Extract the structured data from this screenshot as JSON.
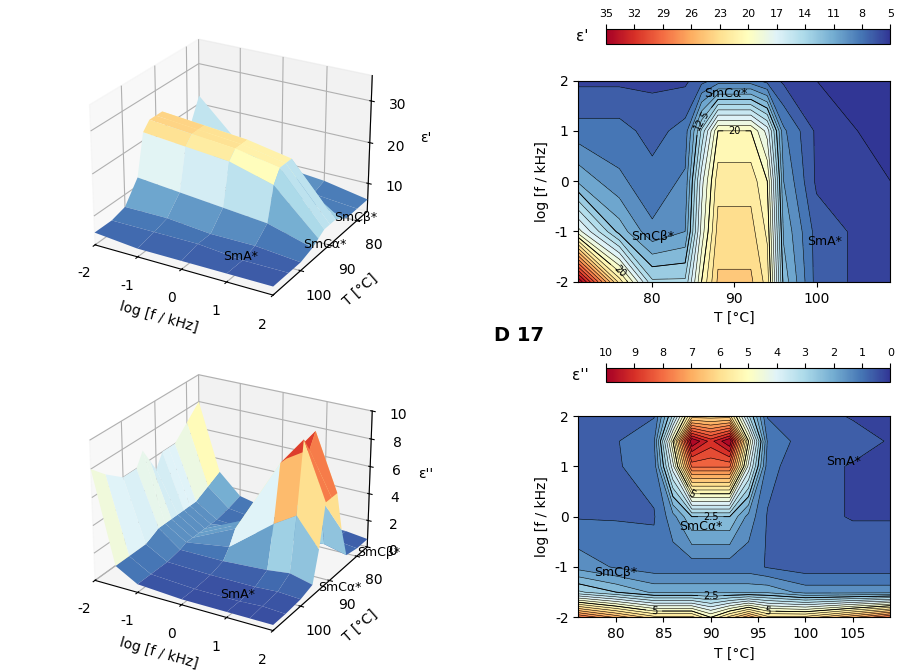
{
  "title": "D 17",
  "chart_data": [
    {
      "type": "surface3d",
      "xlabel": "T [°C]",
      "ylabel": "log [f / kHz]",
      "zlabel": "ε'",
      "x": [
        76,
        80,
        84,
        86,
        88,
        90,
        92,
        94,
        96,
        100,
        104,
        109
      ],
      "y": [
        -2,
        -1,
        0,
        1,
        2
      ],
      "cells": [
        [
          22,
          14,
          14,
          20,
          24,
          24,
          24,
          22,
          12,
          7,
          6,
          6
        ],
        [
          12,
          9,
          10,
          18,
          23,
          23,
          23,
          21,
          11,
          7,
          6,
          5
        ],
        [
          9,
          8,
          9,
          17,
          22,
          22,
          22,
          20,
          10,
          6,
          6,
          5
        ],
        [
          8,
          7,
          8,
          14,
          20,
          20,
          20,
          17,
          9,
          6,
          5,
          5
        ],
        [
          6,
          6,
          6,
          7,
          8,
          8,
          8,
          7,
          6,
          5,
          5,
          5
        ]
      ],
      "xlim": [
        109,
        76
      ],
      "xticks": [
        100,
        90,
        80
      ],
      "ylim": [
        -2,
        2
      ],
      "yticks": [
        -2,
        -1,
        0,
        1,
        2
      ],
      "zlim": [
        3,
        36
      ],
      "zticks": [
        10,
        20,
        30
      ],
      "annotations": [
        {
          "text": "SmA*",
          "x": 103,
          "y": 0.5
        },
        {
          "text": "SmCα*",
          "x": 93,
          "y": 1.6
        },
        {
          "text": "SmCβ*",
          "x": 82,
          "y": 1.6
        }
      ]
    },
    {
      "type": "surface3d",
      "xlabel": "T [°C]",
      "ylabel": "log [f / kHz]",
      "zlabel": "ε''",
      "x": [
        76,
        80,
        84,
        86,
        88,
        90,
        92,
        94,
        96,
        100,
        105,
        109
      ],
      "y": [
        -2,
        -1.5,
        -1,
        0,
        1,
        1.5,
        2
      ],
      "cells": [
        [
          8,
          7,
          6,
          6,
          6,
          5,
          6,
          7,
          6,
          6,
          7,
          8
        ],
        [
          3,
          2.5,
          2,
          2,
          2,
          2,
          2,
          2,
          2,
          1.5,
          1.5,
          1.5
        ],
        [
          1.5,
          1.2,
          1,
          1,
          1,
          1,
          1,
          1,
          0.8,
          0.6,
          0.6,
          0.6
        ],
        [
          0.8,
          0.8,
          0.8,
          1.5,
          2.5,
          2.5,
          2.5,
          1.5,
          0.8,
          0.5,
          0.4,
          0.4
        ],
        [
          0.8,
          0.8,
          1,
          4,
          8,
          8,
          8,
          4,
          1,
          0.5,
          0.4,
          0.4
        ],
        [
          0.8,
          0.8,
          1.2,
          5,
          10,
          9,
          10,
          5,
          1.2,
          0.6,
          0.5,
          0.4
        ],
        [
          0.6,
          0.6,
          0.8,
          3,
          6,
          6,
          6,
          3,
          0.8,
          0.5,
          0.4,
          0.4
        ]
      ],
      "xlim": [
        109,
        76
      ],
      "xticks": [
        100,
        90,
        80
      ],
      "ylim": [
        -2,
        2
      ],
      "yticks": [
        -2,
        -1,
        0,
        1,
        2
      ],
      "zlim": [
        0,
        10
      ],
      "zticks": [
        0,
        2,
        4,
        6,
        8,
        10
      ],
      "annotations": [
        {
          "text": "SmA*",
          "x": 104,
          "y": 0.5
        },
        {
          "text": "SmCα*",
          "x": 94,
          "y": 2
        },
        {
          "text": "SmCβ*",
          "x": 80,
          "y": 2
        }
      ]
    },
    {
      "type": "contour",
      "xlabel": "T [°C]",
      "ylabel": "log [f / kHz]",
      "colorbar_label": "ε'",
      "x": [
        71,
        76,
        80,
        84,
        86,
        88,
        90,
        92,
        94,
        96,
        100,
        105,
        109
      ],
      "y": [
        -2,
        -1,
        0,
        1,
        2
      ],
      "cells": [
        [
          35,
          22,
          14,
          14,
          20,
          24,
          24,
          24,
          22,
          12,
          7,
          6,
          6
        ],
        [
          18,
          12,
          9,
          10,
          18,
          23,
          23,
          23,
          21,
          11,
          7,
          6,
          5
        ],
        [
          11,
          9,
          8,
          9,
          17,
          22,
          22,
          22,
          20,
          10,
          6,
          6,
          5
        ],
        [
          8,
          8,
          7,
          8,
          14,
          20,
          20,
          20,
          17,
          9,
          6,
          5,
          5
        ],
        [
          6,
          6,
          6,
          6,
          7,
          8,
          8,
          8,
          7,
          6,
          5,
          5,
          5
        ]
      ],
      "xlim": [
        71,
        109
      ],
      "xticks": [
        80,
        90,
        100
      ],
      "ylim": [
        -2,
        2
      ],
      "yticks": [
        -2,
        -1,
        0,
        1,
        2
      ],
      "colorbar_range": [
        35,
        5
      ],
      "colorbar_ticks": [
        35,
        32,
        29,
        26,
        23,
        20,
        17,
        14,
        11,
        8,
        5
      ],
      "contour_labels": [
        {
          "value": 12.5,
          "label": "12.5"
        },
        {
          "value": 20,
          "label": "20"
        }
      ],
      "annotations": [
        {
          "text": "SmCα*",
          "x": 89,
          "y": 1.75
        },
        {
          "text": "SmCβ*",
          "x": 80,
          "y": -1.1
        },
        {
          "text": "SmA*",
          "x": 101,
          "y": -1.2
        }
      ]
    },
    {
      "type": "contour",
      "xlabel": "T [°C]",
      "ylabel": "log [f / kHz]",
      "colorbar_label": "ε''",
      "x": [
        76,
        80,
        84,
        86,
        88,
        90,
        92,
        94,
        96,
        100,
        105,
        109
      ],
      "y": [
        -2,
        -1.5,
        -1,
        0,
        1,
        1.5,
        2
      ],
      "cells": [
        [
          8,
          7,
          6,
          6,
          6,
          5,
          6,
          7,
          6,
          6,
          7,
          8
        ],
        [
          3,
          2.5,
          2,
          2,
          2,
          2,
          2,
          2,
          2,
          1.5,
          1.5,
          1.5
        ],
        [
          1.5,
          1.2,
          1,
          1,
          1,
          1,
          1,
          1,
          0.8,
          0.6,
          0.6,
          0.6
        ],
        [
          0.8,
          0.8,
          0.8,
          1.5,
          2.5,
          2.5,
          2.5,
          1.5,
          0.8,
          0.5,
          0.4,
          0.4
        ],
        [
          0.8,
          0.8,
          1,
          4,
          8,
          8,
          8,
          4,
          1,
          0.5,
          0.4,
          0.4
        ],
        [
          0.8,
          0.8,
          1.2,
          5,
          10,
          9,
          10,
          5,
          1.2,
          0.6,
          0.5,
          0.4
        ],
        [
          0.6,
          0.6,
          0.8,
          3,
          6,
          6,
          6,
          3,
          0.8,
          0.5,
          0.4,
          0.4
        ]
      ],
      "xlim": [
        76,
        109
      ],
      "xticks": [
        80,
        85,
        90,
        95,
        100,
        105
      ],
      "ylim": [
        -2,
        2
      ],
      "yticks": [
        -2,
        -1,
        0,
        1,
        2
      ],
      "colorbar_range": [
        10,
        0
      ],
      "colorbar_ticks": [
        10,
        9,
        8,
        7,
        6,
        5,
        4,
        3,
        2,
        1,
        0
      ],
      "contour_labels": [
        {
          "value": 2.5,
          "label": "2.5"
        },
        {
          "value": 5,
          "label": "5"
        }
      ],
      "annotations": [
        {
          "text": "SmA*",
          "x": 104,
          "y": 1.1
        },
        {
          "text": "SmCα*",
          "x": 89,
          "y": -0.2
        },
        {
          "text": "SmCβ*",
          "x": 80,
          "y": -1.1
        }
      ]
    }
  ]
}
